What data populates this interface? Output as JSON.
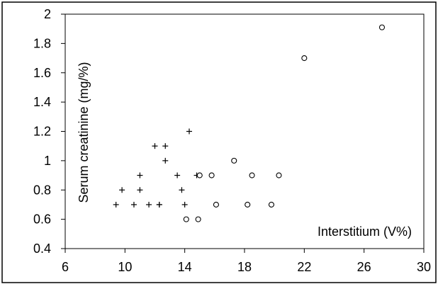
{
  "chart_data": {
    "type": "scatter",
    "title": "",
    "xlabel": "Interstitium (V%)",
    "ylabel": "Serum creatinine (mg/%)",
    "xlim": [
      6,
      30
    ],
    "ylim": [
      0.4,
      2.0
    ],
    "x_ticks": [
      6,
      10,
      14,
      18,
      22,
      26,
      30
    ],
    "y_ticks": [
      0.4,
      0.6,
      0.8,
      1.0,
      1.2,
      1.4,
      1.6,
      1.8,
      2.0
    ],
    "x_tick_labels": [
      "6",
      "10",
      "14",
      "18",
      "22",
      "26",
      "30"
    ],
    "y_tick_labels": [
      "0.4",
      "0.6",
      "0.8",
      "1",
      "1.2",
      "1.4",
      "1.6",
      "1.8",
      "2"
    ],
    "grid": false,
    "series": [
      {
        "marker": "plus",
        "color": "#000000",
        "points": [
          [
            9.4,
            0.7
          ],
          [
            9.8,
            0.8
          ],
          [
            10.6,
            0.7
          ],
          [
            11.0,
            0.9
          ],
          [
            11.0,
            0.8
          ],
          [
            11.6,
            0.7
          ],
          [
            12.0,
            1.1
          ],
          [
            12.3,
            0.7
          ],
          [
            12.3,
            0.7
          ],
          [
            12.7,
            1.1
          ],
          [
            12.7,
            1.0
          ],
          [
            13.5,
            0.9
          ],
          [
            13.8,
            0.8
          ],
          [
            14.0,
            0.7
          ],
          [
            14.3,
            1.2
          ],
          [
            14.8,
            0.9
          ]
        ]
      },
      {
        "marker": "circle",
        "color": "#000000",
        "points": [
          [
            14.1,
            0.6
          ],
          [
            14.9,
            0.6
          ],
          [
            15.0,
            0.9
          ],
          [
            15.8,
            0.9
          ],
          [
            16.1,
            0.7
          ],
          [
            17.3,
            1.0
          ],
          [
            18.2,
            0.7
          ],
          [
            18.5,
            0.9
          ],
          [
            19.8,
            0.7
          ],
          [
            20.3,
            0.9
          ],
          [
            22.0,
            1.7
          ],
          [
            27.2,
            1.91
          ]
        ]
      }
    ]
  }
}
